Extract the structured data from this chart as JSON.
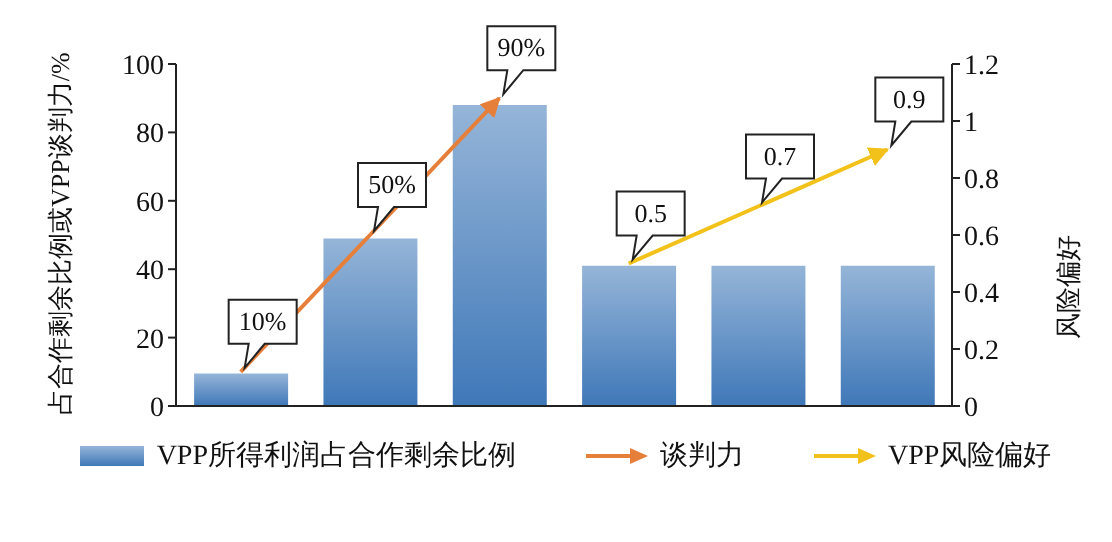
{
  "chart_data": {
    "type": "bar",
    "categories": [
      null,
      null,
      null,
      null,
      null,
      null
    ],
    "ylabel": "占合作剩余比例或VPP谈判力/%",
    "y2label": "风险偏好",
    "ylim": [
      0,
      100
    ],
    "yticks": [
      0,
      20,
      40,
      60,
      80,
      100
    ],
    "y2lim": [
      0,
      1.2
    ],
    "y2ticks": [
      0,
      0.2,
      0.4,
      0.6,
      0.8,
      1,
      1.2
    ],
    "legend": "bottom",
    "marker": "none",
    "line_style": "solid",
    "series": [
      {
        "name": "VPP所得利润占合作剩余比例",
        "color": "#3f78b8",
        "values": [
          9.5,
          49,
          88,
          41,
          41,
          41
        ]
      },
      {
        "name": "谈判力",
        "type": "line",
        "color": "#e57f3a",
        "values": [
          10,
          50,
          90,
          null,
          null,
          null
        ],
        "value_labels": [
          "10%",
          "50%",
          "90%",
          null,
          null,
          null
        ]
      },
      {
        "name": "VPP风险偏好",
        "type": "line",
        "axis": "y2",
        "color": "#f2c21b",
        "values": [
          null,
          null,
          null,
          0.5,
          0.7,
          0.9
        ],
        "value_labels": [
          null,
          null,
          null,
          "0.5",
          "0.7",
          "0.9"
        ]
      }
    ]
  }
}
